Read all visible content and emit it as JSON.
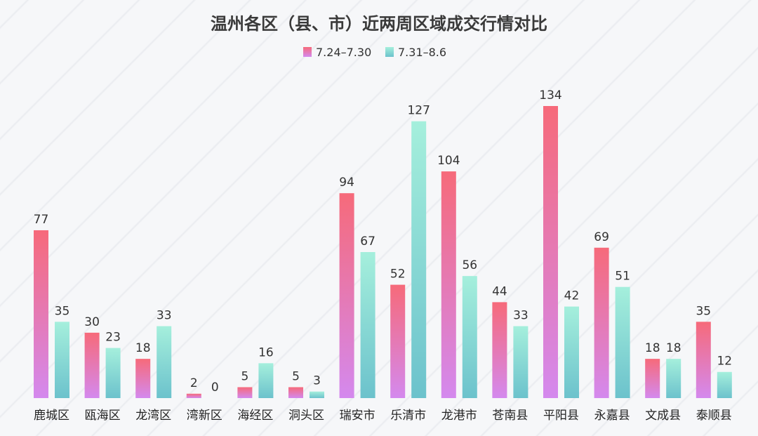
{
  "chart_data": {
    "type": "bar",
    "title": "温州各区（县、市）近两周区域成交行情对比",
    "categories": [
      "鹿城区",
      "瓯海区",
      "龙湾区",
      "湾新区",
      "海经区",
      "洞头区",
      "瑞安市",
      "乐清市",
      "龙港市",
      "苍南县",
      "平阳县",
      "永嘉县",
      "文成县",
      "泰顺县"
    ],
    "series": [
      {
        "name": "7.24–7.30",
        "values": [
          77,
          30,
          18,
          2,
          5,
          5,
          94,
          52,
          104,
          44,
          134,
          69,
          18,
          35
        ],
        "color_top": "#f66a7a",
        "color_bottom": "#d489ee"
      },
      {
        "name": "7.31–8.6",
        "values": [
          35,
          23,
          33,
          0,
          16,
          3,
          67,
          127,
          56,
          33,
          42,
          51,
          18,
          12
        ],
        "color_top": "#a5efdc",
        "color_bottom": "#6cc2cc"
      }
    ],
    "ylim": [
      0,
      134
    ],
    "legend": "top-center",
    "grid": false
  }
}
